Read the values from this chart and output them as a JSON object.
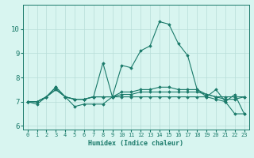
{
  "xlabel": "Humidex (Indice chaleur)",
  "ylabel": "",
  "background_color": "#d8f5f0",
  "grid_color": "#b8ddd8",
  "line_color": "#1a7a6a",
  "xlim": [
    -0.5,
    23.5
  ],
  "ylim": [
    5.85,
    11.0
  ],
  "yticks": [
    6,
    7,
    8,
    9,
    10
  ],
  "xticks": [
    0,
    1,
    2,
    3,
    4,
    5,
    6,
    7,
    8,
    9,
    10,
    11,
    12,
    13,
    14,
    15,
    16,
    17,
    18,
    19,
    20,
    21,
    22,
    23
  ],
  "lines": [
    {
      "x": [
        0,
        1,
        2,
        3,
        4,
        5,
        6,
        7,
        8,
        9,
        10,
        11,
        12,
        13,
        14,
        15,
        16,
        17,
        18,
        19,
        20,
        21,
        22,
        23
      ],
      "y": [
        7.0,
        6.9,
        7.2,
        7.6,
        7.2,
        6.8,
        6.9,
        6.9,
        6.9,
        7.2,
        7.2,
        7.2,
        7.2,
        7.2,
        7.2,
        7.2,
        7.2,
        7.2,
        7.2,
        7.2,
        7.1,
        7.0,
        6.5,
        6.5
      ]
    },
    {
      "x": [
        0,
        1,
        2,
        3,
        4,
        5,
        6,
        7,
        8,
        9,
        10,
        11,
        12,
        13,
        14,
        15,
        16,
        17,
        18,
        19,
        20,
        21,
        22,
        23
      ],
      "y": [
        7.0,
        7.0,
        7.2,
        7.6,
        7.2,
        7.1,
        7.1,
        7.2,
        8.6,
        7.2,
        8.5,
        8.4,
        9.1,
        9.3,
        10.3,
        10.2,
        9.4,
        8.9,
        7.5,
        7.2,
        7.5,
        7.0,
        7.3,
        6.5
      ]
    },
    {
      "x": [
        0,
        1,
        2,
        3,
        4,
        5,
        6,
        7,
        8,
        9,
        10,
        11,
        12,
        13,
        14,
        15,
        16,
        17,
        18,
        19,
        20,
        21,
        22,
        23
      ],
      "y": [
        7.0,
        7.0,
        7.2,
        7.5,
        7.2,
        7.1,
        7.1,
        7.2,
        7.2,
        7.2,
        7.3,
        7.3,
        7.4,
        7.4,
        7.4,
        7.4,
        7.4,
        7.4,
        7.4,
        7.3,
        7.2,
        7.2,
        7.2,
        7.2
      ]
    },
    {
      "x": [
        0,
        1,
        2,
        3,
        4,
        5,
        6,
        7,
        8,
        9,
        10,
        11,
        12,
        13,
        14,
        15,
        16,
        17,
        18,
        19,
        20,
        21,
        22,
        23
      ],
      "y": [
        7.0,
        7.0,
        7.2,
        7.5,
        7.2,
        7.1,
        7.1,
        7.2,
        7.2,
        7.2,
        7.4,
        7.4,
        7.5,
        7.5,
        7.6,
        7.6,
        7.5,
        7.5,
        7.5,
        7.3,
        7.2,
        7.1,
        7.1,
        7.2
      ]
    }
  ]
}
